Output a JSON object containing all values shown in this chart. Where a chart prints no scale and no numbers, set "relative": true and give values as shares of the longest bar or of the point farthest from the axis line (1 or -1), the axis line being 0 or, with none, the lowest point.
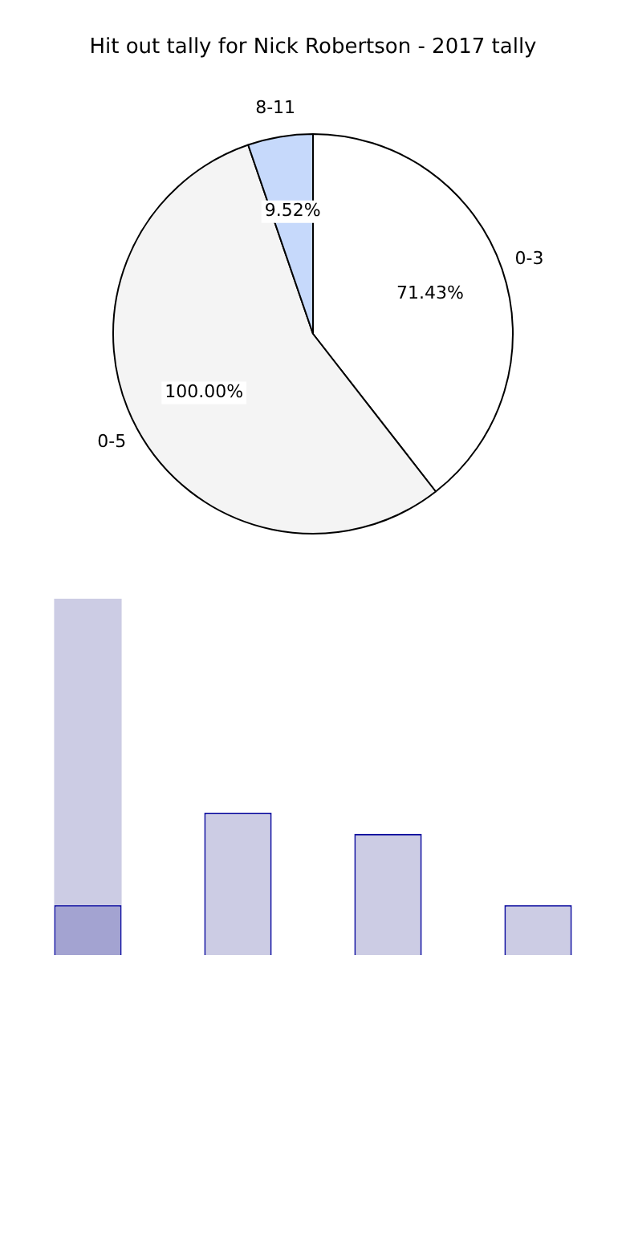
{
  "chart_data": [
    {
      "type": "pie",
      "title": "Hit out tally for Nick Robertson - 2017 tally",
      "categories": [
        "0-3",
        "0-5",
        "8-11"
      ],
      "values": [
        71.43,
        100,
        9.52
      ],
      "colors": [
        "#ffffff",
        "#f4f4f4",
        "#c6d9fb"
      ],
      "value_labels": [
        "71.43%",
        "100.00%",
        "9.52%"
      ]
    },
    {
      "type": "bar",
      "relative": true,
      "stacked": true,
      "categories": [
        null,
        null,
        null,
        null
      ],
      "series": [
        {
          "colors": [
            "#a3a3d1",
            "#cccce4",
            "#cccce4",
            "#cccce4"
          ],
          "values": [
            0.14,
            0.4,
            0.34,
            0.14
          ]
        },
        {
          "color": "#cccce4",
          "values": [
            0.86,
            0,
            0,
            0
          ]
        }
      ]
    }
  ]
}
